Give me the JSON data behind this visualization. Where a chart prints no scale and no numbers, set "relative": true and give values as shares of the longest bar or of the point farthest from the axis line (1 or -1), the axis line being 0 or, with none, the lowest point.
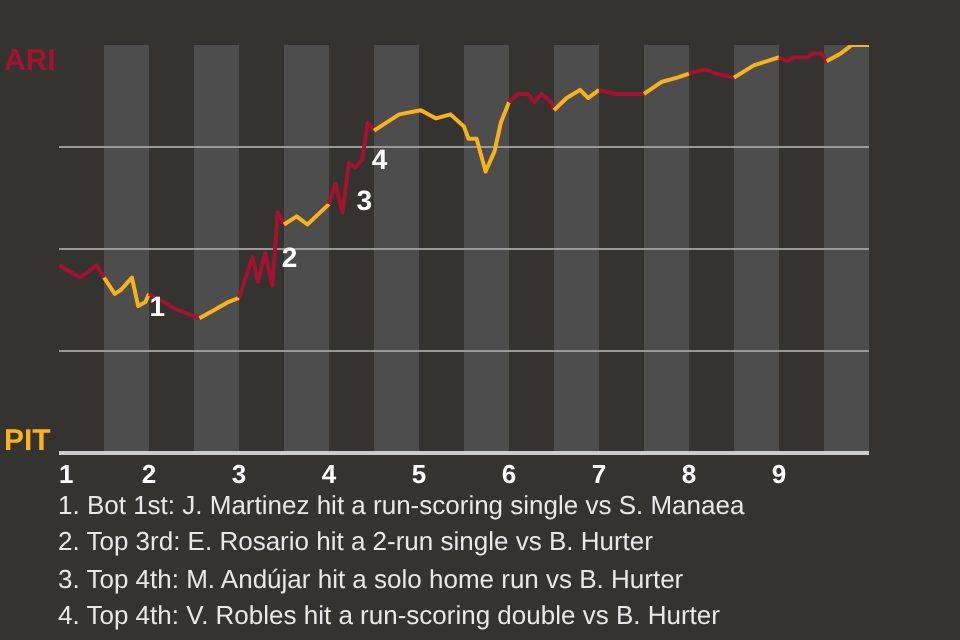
{
  "chart_data": {
    "type": "line",
    "relative": true,
    "grid": "y",
    "marker": "none",
    "line_style": "solid",
    "xlim": [
      1,
      10
    ],
    "xticks": [
      1,
      2,
      3,
      4,
      5,
      6,
      7,
      8,
      9
    ],
    "series": [
      {
        "color": "#a3122e",
        "x": [
          1.0,
          1.23,
          1.42,
          1.5
        ],
        "values": [
          0.46,
          0.43,
          0.46,
          0.43
        ]
      },
      {
        "color": "#f7b21e",
        "x": [
          1.5,
          1.62,
          1.69,
          1.81,
          1.88,
          1.96,
          2.0
        ],
        "values": [
          0.43,
          0.39,
          0.4,
          0.43,
          0.36,
          0.37,
          0.39
        ]
      },
      {
        "color": "#a3122e",
        "x": [
          2.0,
          2.32,
          2.56
        ],
        "values": [
          0.39,
          0.35,
          0.33
        ]
      },
      {
        "color": "#f7b21e",
        "x": [
          2.56,
          2.72,
          2.88,
          3.0
        ],
        "values": [
          0.33,
          0.35,
          0.37,
          0.38
        ]
      },
      {
        "color": "#a3122e",
        "x": [
          3.0,
          3.06,
          3.15,
          3.21,
          3.29,
          3.37,
          3.43,
          3.5
        ],
        "values": [
          0.38,
          0.42,
          0.48,
          0.42,
          0.49,
          0.41,
          0.59,
          0.56
        ]
      },
      {
        "color": "#f7b21e",
        "x": [
          3.5,
          3.64,
          3.76,
          4.0
        ],
        "values": [
          0.56,
          0.58,
          0.56,
          0.61
        ]
      },
      {
        "color": "#a3122e",
        "x": [
          4.0,
          4.07,
          4.15,
          4.22,
          4.29,
          4.37,
          4.43,
          4.5
        ],
        "values": [
          0.61,
          0.66,
          0.59,
          0.71,
          0.7,
          0.72,
          0.81,
          0.79
        ]
      },
      {
        "color": "#f7b21e",
        "x": [
          4.5,
          4.78,
          5.02,
          5.19,
          5.35,
          5.5,
          5.55,
          5.64,
          5.74,
          5.84,
          5.91,
          6.0
        ],
        "values": [
          0.79,
          0.83,
          0.84,
          0.82,
          0.83,
          0.8,
          0.77,
          0.77,
          0.69,
          0.74,
          0.81,
          0.86
        ]
      },
      {
        "color": "#a3122e",
        "x": [
          6.0,
          6.1,
          6.21,
          6.28,
          6.36,
          6.47,
          6.5
        ],
        "values": [
          0.86,
          0.88,
          0.88,
          0.86,
          0.88,
          0.86,
          0.84
        ]
      },
      {
        "color": "#f7b21e",
        "x": [
          6.5,
          6.64,
          6.79,
          6.88,
          7.0
        ],
        "values": [
          0.84,
          0.87,
          0.89,
          0.87,
          0.89
        ]
      },
      {
        "color": "#a3122e",
        "x": [
          7.0,
          7.18,
          7.5
        ],
        "values": [
          0.89,
          0.88,
          0.88
        ]
      },
      {
        "color": "#f7b21e",
        "x": [
          7.5,
          7.7,
          7.87,
          8.0
        ],
        "values": [
          0.88,
          0.91,
          0.92,
          0.93
        ]
      },
      {
        "color": "#a3122e",
        "x": [
          8.0,
          8.18,
          8.3,
          8.5
        ],
        "values": [
          0.93,
          0.94,
          0.93,
          0.92
        ]
      },
      {
        "color": "#f7b21e",
        "x": [
          8.5,
          8.72,
          9.0
        ],
        "values": [
          0.92,
          0.95,
          0.97
        ]
      },
      {
        "color": "#a3122e",
        "x": [
          9.0,
          9.09,
          9.16,
          9.32,
          9.38,
          9.47,
          9.53
        ],
        "values": [
          0.97,
          0.96,
          0.97,
          0.97,
          0.98,
          0.98,
          0.96
        ]
      },
      {
        "color": "#f7b21e",
        "x": [
          9.53,
          9.69,
          9.81,
          10.0
        ],
        "values": [
          0.96,
          0.98,
          1.0,
          1.0
        ]
      }
    ],
    "bands": [
      {
        "axis": "x",
        "from": 1.5,
        "to": 2,
        "color": "#4d4d4d"
      },
      {
        "axis": "x",
        "from": 2.5,
        "to": 3,
        "color": "#4d4d4d"
      },
      {
        "axis": "x",
        "from": 3.5,
        "to": 4,
        "color": "#4d4d4d"
      },
      {
        "axis": "x",
        "from": 4.5,
        "to": 5,
        "color": "#4d4d4d"
      },
      {
        "axis": "x",
        "from": 5.5,
        "to": 6,
        "color": "#4d4d4d"
      },
      {
        "axis": "x",
        "from": 6.5,
        "to": 7,
        "color": "#4d4d4d"
      },
      {
        "axis": "x",
        "from": 7.5,
        "to": 8,
        "color": "#4d4d4d"
      },
      {
        "axis": "x",
        "from": 8.5,
        "to": 9,
        "color": "#4d4d4d"
      },
      {
        "axis": "x",
        "from": 9.5,
        "to": 10,
        "color": "#4d4d4d"
      }
    ],
    "annotations": [
      "ARI",
      "PIT",
      {
        "text": "1",
        "x": 1.96,
        "y": 0.36
      },
      {
        "text": "2",
        "x": 3.43,
        "y": 0.48
      },
      {
        "text": "3",
        "x": 4.26,
        "y": 0.62
      },
      {
        "text": "4",
        "x": 4.43,
        "y": 0.72
      },
      "1. Bot 1st: J. Martinez hit a run-scoring single vs S. Manaea",
      "2. Top 3rd: E. Rosario hit a 2-run single vs B. Hurter",
      "3. Top 4th: M. Andújar hit a solo home run vs B. Hurter",
      "4. Top 4th: V. Robles hit a run-scoring double vs B. Hurter"
    ]
  }
}
